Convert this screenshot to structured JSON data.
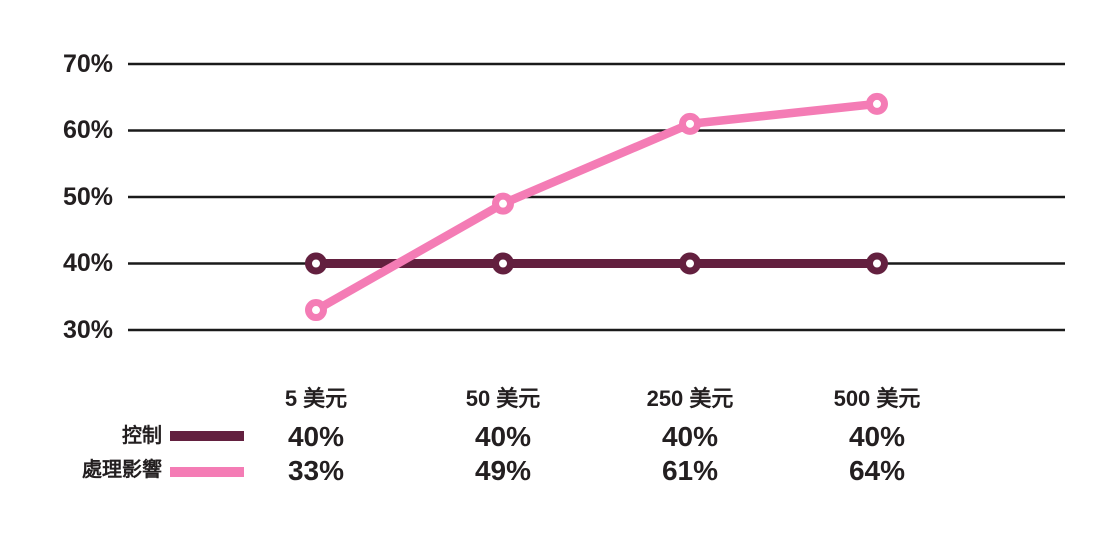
{
  "colors": {
    "control": "#63203F",
    "treatment": "#F47CB5",
    "grid": "#1A1A1A",
    "text": "#231F20",
    "background": "#FFFFFF",
    "marker_fill": "#FFFFFF"
  },
  "chart_data": {
    "type": "line",
    "categories": [
      "5 美元",
      "50 美元",
      "250 美元",
      "500 美元"
    ],
    "series": [
      {
        "name": "控制",
        "color_key": "control",
        "values": [
          40,
          40,
          40,
          40
        ]
      },
      {
        "name": "處理影響",
        "color_key": "treatment",
        "values": [
          33,
          49,
          61,
          64
        ]
      }
    ],
    "title": "",
    "xlabel": "",
    "ylabel": "",
    "yticks": [
      70,
      60,
      50,
      40,
      30
    ],
    "ytick_labels": [
      "70%",
      "60%",
      "50%",
      "40%",
      "30%"
    ],
    "ylim": [
      30,
      70
    ],
    "grid": true,
    "legend_position": "table-below"
  },
  "table": {
    "column_headers": [
      "5 美元",
      "50 美元",
      "250 美元",
      "500 美元"
    ],
    "rows": [
      {
        "label": "控制",
        "swatch_color_key": "control",
        "values": [
          "40%",
          "40%",
          "40%",
          "40%"
        ]
      },
      {
        "label": "處理影響",
        "swatch_color_key": "treatment",
        "values": [
          "33%",
          "49%",
          "61%",
          "64%"
        ]
      }
    ]
  }
}
